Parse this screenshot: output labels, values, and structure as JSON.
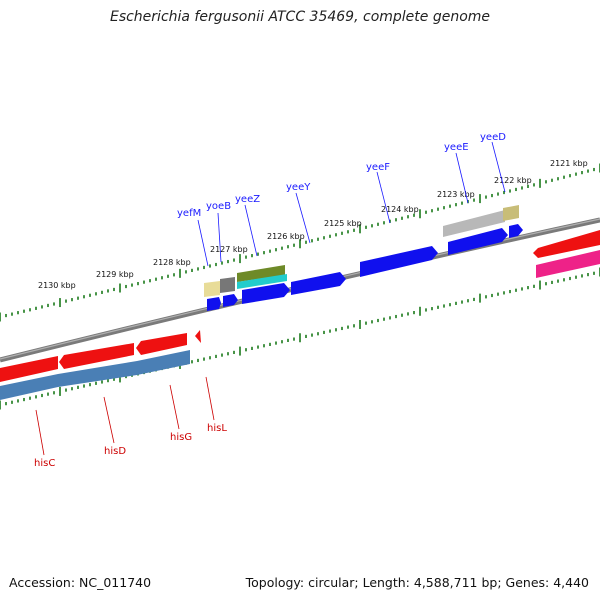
{
  "title": "Escherichia fergusonii ATCC 35469, complete genome",
  "footer": {
    "accession": "Accession: NC_011740",
    "topology": "Topology: circular; Length: 4,588,711 bp; Genes: 4,440"
  },
  "ruler_labels": [
    "2130 kbp",
    "2129 kbp",
    "2128 kbp",
    "2127 kbp",
    "2126 kbp",
    "2125 kbp",
    "2124 kbp",
    "2123 kbp",
    "2122 kbp",
    "2121 kbp"
  ],
  "forward_gene_labels": [
    "yefM",
    "yoeB",
    "yeeZ",
    "yeeY",
    "yeeF",
    "yeeE",
    "yeeD"
  ],
  "reverse_gene_labels": [
    "hisC",
    "hisD",
    "hisG",
    "hisL"
  ],
  "colors": {
    "forward_label": "#1a1aff",
    "reverse_label": "#cc0000",
    "tick": "#1a7a1a",
    "backbone": "#8a8a8a",
    "cds_blue": "#1010ee",
    "cds_red": "#ee1111",
    "gene_steelblue": "#4a7fb5",
    "gene_pink": "#ee2288",
    "gene_gray": "#b8b8b8",
    "gene_khaki": "#c8bd78",
    "gene_olive": "#6e8a28",
    "gene_cyan": "#22cccc",
    "gene_pale": "#e8dc98"
  }
}
